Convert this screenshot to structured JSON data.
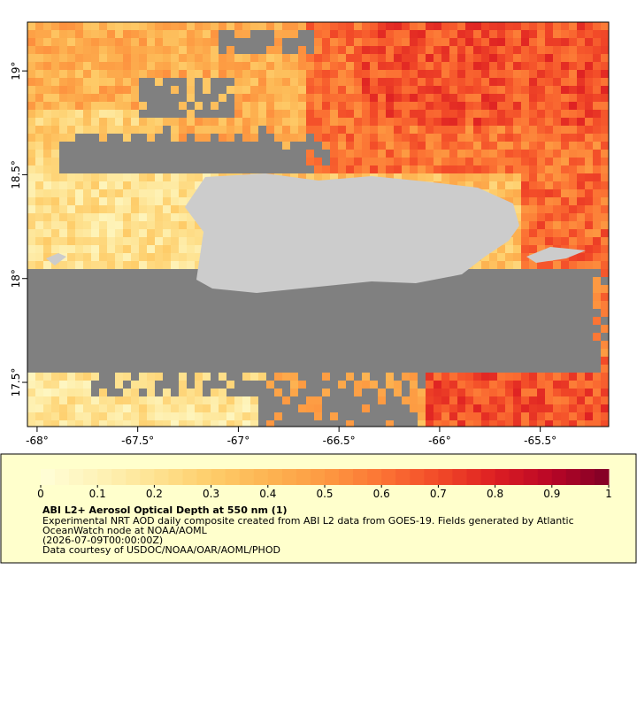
{
  "map": {
    "xlim": [
      -68.048,
      -65.16
    ],
    "ylim": [
      17.287,
      19.235
    ],
    "xticks": [
      {
        "value": -68,
        "label": "-68°"
      },
      {
        "value": -67.5,
        "label": "-67.5°"
      },
      {
        "value": -67,
        "label": "-67°"
      },
      {
        "value": -66.5,
        "label": "-66.5°"
      },
      {
        "value": -66,
        "label": "-66°"
      },
      {
        "value": -65.5,
        "label": "-65.5°"
      }
    ],
    "yticks": [
      {
        "value": 17.5,
        "label": "17.5°"
      },
      {
        "value": 18,
        "label": "18°"
      },
      {
        "value": 18.5,
        "label": "18.5°"
      },
      {
        "value": 19,
        "label": "19°"
      }
    ],
    "land_color": "#cccccc",
    "missing_color": "#808080"
  },
  "colorbar": {
    "lim": [
      0,
      1
    ],
    "ticks": [
      0,
      0.1,
      0.2,
      0.3,
      0.4,
      0.5,
      0.6,
      0.7,
      0.8,
      0.9,
      1
    ],
    "colors": [
      "#fffed8",
      "#fef3b8",
      "#fee392",
      "#fecd6a",
      "#fdb452",
      "#fd9a42",
      "#fc7434",
      "#f24a28",
      "#dd1e22",
      "#b80626",
      "#800026"
    ]
  },
  "legend": {
    "title": "ABI L2+ Aerosol Optical Depth at 550 nm (1)",
    "lines": [
      "Experimental NRT AOD daily composite created from ABI L2 data from GOES-19. Fields generated by Atlantic",
      "OceanWatch node at NOAA/AOML",
      "(2026-07-09T00:00:00Z)",
      "Data courtesy of USDOC/NOAA/OAR/AOML/PHOD"
    ]
  }
}
